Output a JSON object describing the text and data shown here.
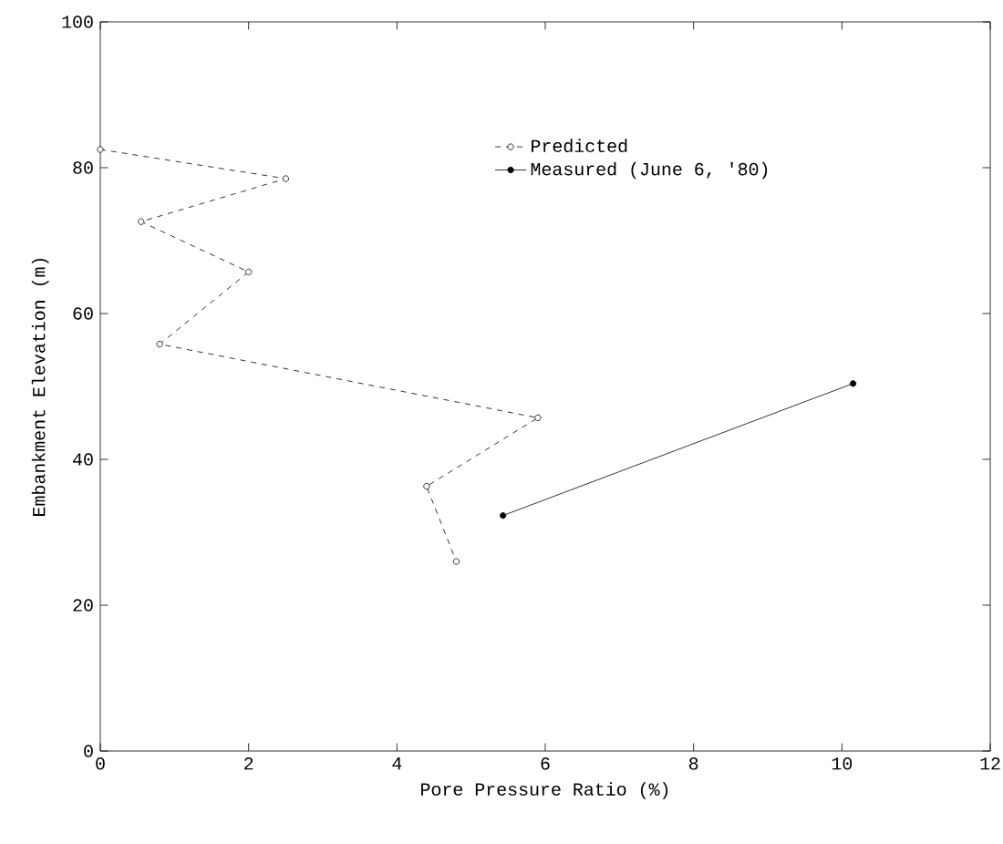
{
  "chart_data": {
    "type": "line",
    "xlabel": "Pore Pressure Ratio (%)",
    "ylabel": "Embankment Elevation (m)",
    "xlim": [
      0,
      12
    ],
    "ylim": [
      0,
      100
    ],
    "xticks": [
      0,
      2,
      4,
      6,
      8,
      10,
      12
    ],
    "yticks": [
      0,
      20,
      40,
      60,
      80,
      100
    ],
    "grid": false,
    "legend": "top",
    "marker": "circle",
    "series": [
      {
        "name": "Predicted",
        "color": "#000000",
        "line_style": "dashed",
        "x": [
          0,
          2.5,
          0.55,
          2.0,
          0.8,
          5.9,
          4.4,
          4.8
        ],
        "values": [
          82.5,
          78.5,
          72.6,
          65.7,
          55.8,
          45.7,
          36.3,
          26
        ]
      },
      {
        "name": "Measured (June 6, '80)",
        "color": "#000000",
        "line_style": "solid",
        "x": [
          5.43,
          10.15
        ],
        "values": [
          32.3,
          50.4
        ]
      }
    ]
  }
}
